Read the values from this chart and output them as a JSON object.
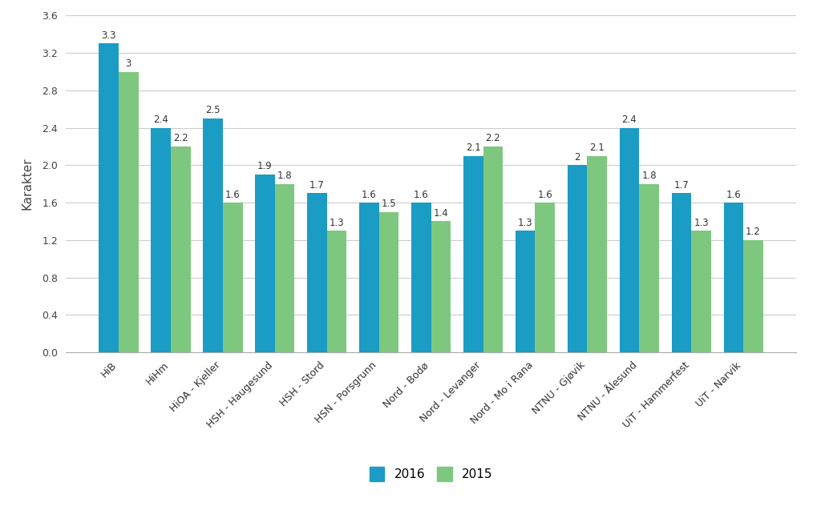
{
  "categories": [
    "HiB",
    "HiHm",
    "HiOA - Kjeller",
    "HSH - Haugesund",
    "HSH - Stord",
    "HSN - Porsgrunn",
    "Nord - Bodø",
    "Nord - Levanger",
    "Nord - Mo i Rana",
    "NTNU - Gjøvik",
    "NTNU - Ålesund",
    "UiT - Hammerfest",
    "UiT - Narvik"
  ],
  "values_2016": [
    3.3,
    2.4,
    2.5,
    1.9,
    1.7,
    1.6,
    1.6,
    2.1,
    1.3,
    2.0,
    2.4,
    1.7,
    1.6
  ],
  "values_2015": [
    3.0,
    2.2,
    1.6,
    1.8,
    1.3,
    1.5,
    1.4,
    2.2,
    1.6,
    2.1,
    1.8,
    1.3,
    1.2
  ],
  "color_2016": "#1B9CC4",
  "color_2015": "#7DC87E",
  "ylabel": "Karakter",
  "ylim": [
    0.0,
    3.6
  ],
  "yticks": [
    0.0,
    0.4,
    0.8,
    1.2,
    1.6,
    2.0,
    2.4,
    2.8,
    3.2,
    3.6
  ],
  "ytick_labels": [
    "0.0",
    "0.4",
    "0.8",
    "1.2",
    "1.6",
    "2.0",
    "2.4",
    "2.8",
    "3.2",
    "3.6"
  ],
  "legend_labels": [
    "2016",
    "2015"
  ],
  "bar_width": 0.38,
  "annotation_fontsize": 8.5,
  "axis_label_fontsize": 11,
  "tick_fontsize": 9,
  "legend_fontsize": 11,
  "background_color": "#FFFFFF",
  "grid_color": "#CCCCCC"
}
